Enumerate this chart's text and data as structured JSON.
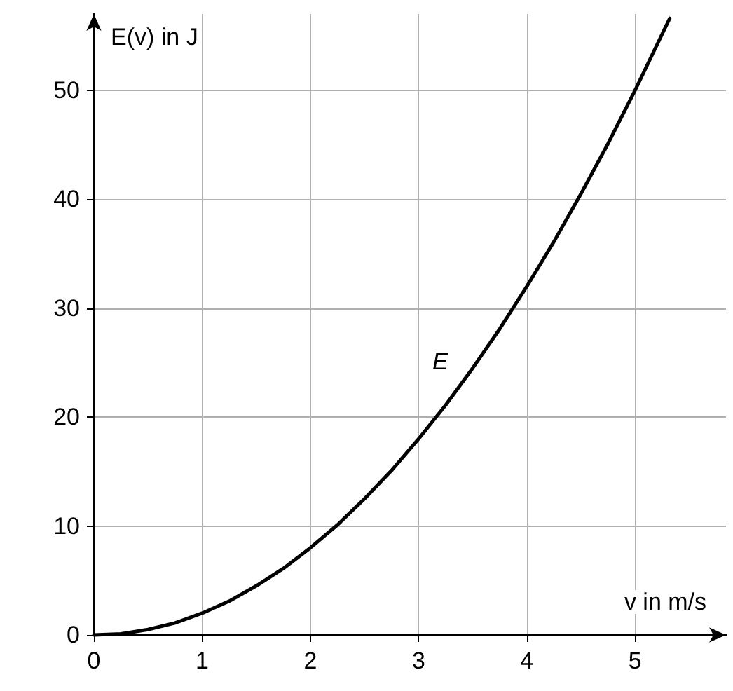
{
  "chart_data": {
    "type": "line",
    "xlabel": "v in m/s",
    "ylabel": "E(v) in J",
    "x": [
      0,
      0.25,
      0.5,
      0.75,
      1,
      1.25,
      1.5,
      1.75,
      2,
      2.25,
      2.5,
      2.75,
      3,
      3.25,
      3.5,
      3.75,
      4,
      4.25,
      4.5,
      4.75,
      5,
      5.32
    ],
    "series": [
      {
        "color": "#000000",
        "values": [
          0,
          0.1,
          0.5,
          1.1,
          2,
          3.1,
          4.5,
          6.1,
          8,
          10.1,
          12.5,
          15.1,
          18,
          21.1,
          24.5,
          28.1,
          32,
          36.1,
          40.5,
          45.1,
          50,
          56.6
        ]
      }
    ],
    "annotations": [
      "E"
    ],
    "xlim": [
      0,
      5.84
    ],
    "ylim": [
      0,
      57
    ],
    "xticks": [
      0,
      1,
      2,
      3,
      4,
      5
    ],
    "yticks": [
      0,
      10,
      20,
      30,
      40,
      50
    ],
    "grid": true,
    "marker": "none",
    "line_style": "solid"
  }
}
